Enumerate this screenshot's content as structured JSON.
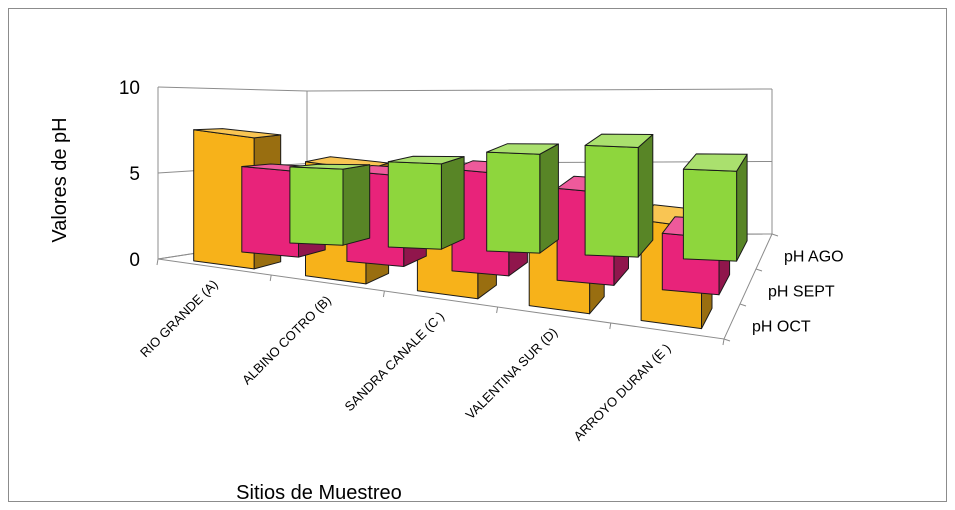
{
  "chart_data": {
    "type": "bar",
    "variant": "3d-column",
    "categories": [
      "RIO GRANDE (A)",
      "ALBINO COTRO (B)",
      "SANDRA CANALE (C )",
      "VALENTINA SUR (D)",
      "ARROYO DURAN (E )"
    ],
    "series": [
      {
        "name": "pH AGO",
        "values": [
          5.0,
          5.6,
          6.5,
          7.2,
          5.9
        ]
      },
      {
        "name": "pH SEPT",
        "values": [
          5.3,
          5.6,
          6.3,
          5.7,
          3.5
        ]
      },
      {
        "name": "pH OCT",
        "values": [
          7.7,
          6.7,
          6.3,
          6.3,
          5.9
        ]
      }
    ],
    "colors": {
      "pH AGO": "#8ed63d",
      "pH SEPT": "#e8237a",
      "pH OCT": "#f7b21a"
    },
    "ylabel": "Valores de pH",
    "xlabel": "Sitios de Muestreo",
    "yticks": [
      "0",
      "5",
      "10"
    ],
    "ylim": [
      0,
      10
    ],
    "grid": true
  }
}
